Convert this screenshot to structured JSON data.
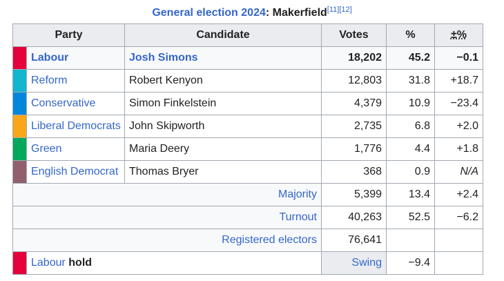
{
  "caption": {
    "title_link": "General election 2024",
    "separator": ": ",
    "constituency": "Makerfield",
    "refs": "[11][12]"
  },
  "headers": [
    "Party",
    "Candidate",
    "Votes",
    "%",
    "±%"
  ],
  "candidates": [
    {
      "color": "#E4003B",
      "party": "Labour",
      "candidate": "Josh Simons",
      "votes": "18,202",
      "pct": "45.2",
      "change": "−0.1",
      "winner": true
    },
    {
      "color": "#12B6CF",
      "party": "Reform",
      "candidate": "Robert Kenyon",
      "votes": "12,803",
      "pct": "31.8",
      "change": "+18.7"
    },
    {
      "color": "#0087DC",
      "party": "Conservative",
      "candidate": "Simon Finkelstein",
      "votes": "4,379",
      "pct": "10.9",
      "change": "−23.4"
    },
    {
      "color": "#FAA61A",
      "party": "Liberal Democrats",
      "candidate": "John Skipworth",
      "votes": "2,735",
      "pct": "6.8",
      "change": "+2.0"
    },
    {
      "color": "#02A95B",
      "party": "Green",
      "candidate": "Maria Deery",
      "votes": "1,776",
      "pct": "4.4",
      "change": "+1.8"
    },
    {
      "color": "#915F6D",
      "party": "English Democrat",
      "candidate": "Thomas Bryer",
      "votes": "368",
      "pct": "0.9",
      "change": "N/A"
    }
  ],
  "summary": {
    "majority": {
      "label": "Majority",
      "votes": "5,399",
      "pct": "13.4",
      "change": "+2.4"
    },
    "turnout": {
      "label": "Turnout",
      "votes": "40,263",
      "pct": "52.5",
      "change": "−6.2"
    },
    "registered": {
      "label": "Registered electors",
      "votes": "76,641"
    }
  },
  "result": {
    "color": "#E4003B",
    "party": "Labour",
    "status": "hold",
    "swing_label": "Swing",
    "swing_value": "−9.4"
  }
}
